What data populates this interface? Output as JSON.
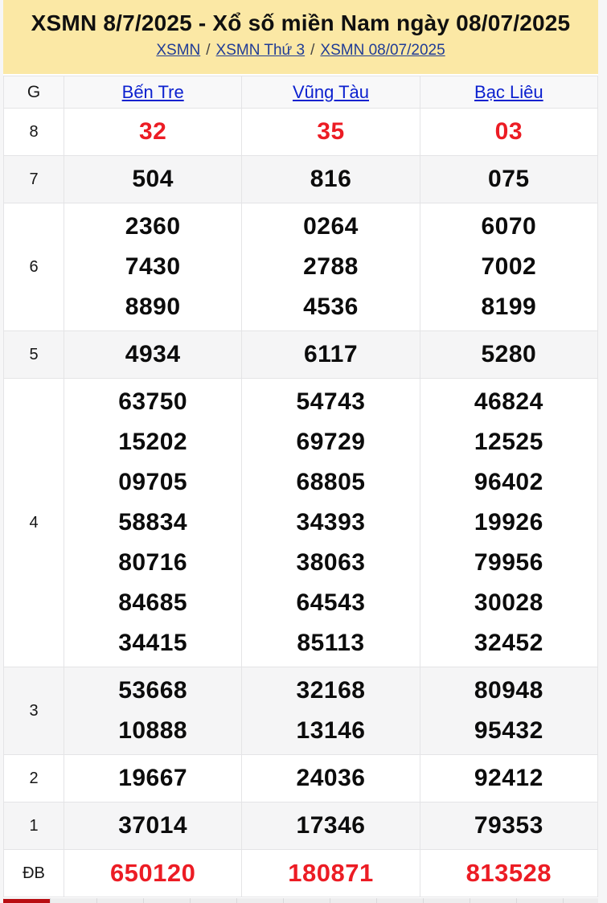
{
  "header": {
    "title": "XSMN 8/7/2025 - Xổ số miền Nam ngày 08/07/2025",
    "breadcrumb": [
      "XSMN",
      "XSMN Thứ 3",
      "XSMN 08/07/2025"
    ],
    "breadcrumb_separator": "/"
  },
  "table": {
    "prize_column_header": "G",
    "provinces": [
      "Bến Tre",
      "Vũng Tàu",
      "Bạc Liêu"
    ],
    "rows": [
      {
        "prize": "8",
        "highlight": true,
        "cells": [
          [
            "32"
          ],
          [
            "35"
          ],
          [
            "03"
          ]
        ]
      },
      {
        "prize": "7",
        "highlight": false,
        "cells": [
          [
            "504"
          ],
          [
            "816"
          ],
          [
            "075"
          ]
        ]
      },
      {
        "prize": "6",
        "highlight": false,
        "cells": [
          [
            "2360",
            "7430",
            "8890"
          ],
          [
            "0264",
            "2788",
            "4536"
          ],
          [
            "6070",
            "7002",
            "8199"
          ]
        ]
      },
      {
        "prize": "5",
        "highlight": false,
        "cells": [
          [
            "4934"
          ],
          [
            "6117"
          ],
          [
            "5280"
          ]
        ]
      },
      {
        "prize": "4",
        "highlight": false,
        "cells": [
          [
            "63750",
            "15202",
            "09705",
            "58834",
            "80716",
            "84685",
            "34415"
          ],
          [
            "54743",
            "69729",
            "68805",
            "34393",
            "38063",
            "64543",
            "85113"
          ],
          [
            "46824",
            "12525",
            "96402",
            "19926",
            "79956",
            "30028",
            "32452"
          ]
        ]
      },
      {
        "prize": "3",
        "highlight": false,
        "cells": [
          [
            "53668",
            "10888"
          ],
          [
            "32168",
            "13146"
          ],
          [
            "80948",
            "95432"
          ]
        ]
      },
      {
        "prize": "2",
        "highlight": false,
        "cells": [
          [
            "19667"
          ],
          [
            "24036"
          ],
          [
            "92412"
          ]
        ]
      },
      {
        "prize": "1",
        "highlight": false,
        "cells": [
          [
            "37014"
          ],
          [
            "17346"
          ],
          [
            "79353"
          ]
        ]
      },
      {
        "prize": "ĐB",
        "highlight": true,
        "cells": [
          [
            "650120"
          ],
          [
            "180871"
          ],
          [
            "813528"
          ]
        ]
      }
    ]
  },
  "colors": {
    "header_bg": "#fbe8a5",
    "accent_red": "#ec1c24",
    "province_link_blue": "#0c21cf",
    "breadcrumb_link_blue": "#203c96",
    "zebra_row_bg": "#f5f5f6",
    "table_border": "#e4e4e6",
    "bottom_tab_red": "#b90d12"
  }
}
